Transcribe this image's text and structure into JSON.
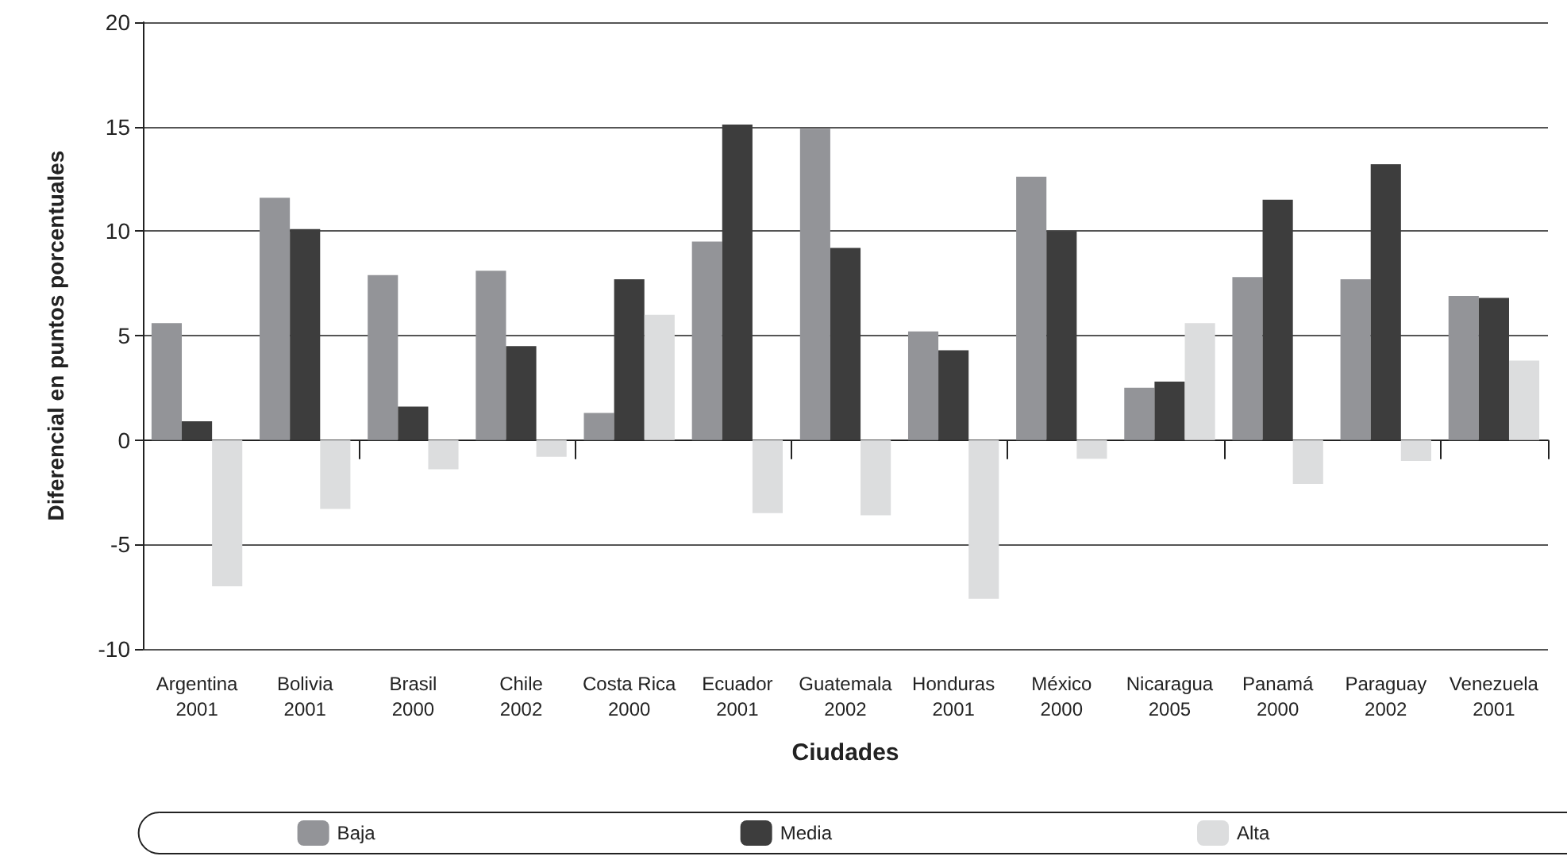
{
  "chart_data": {
    "type": "bar",
    "xlabel": "Ciudades",
    "ylabel": "Diferencial en puntos porcentuales",
    "categories": [
      "Argentina\n2001",
      "Bolivia\n2001",
      "Brasil\n2000",
      "Chile\n2002",
      "Costa Rica\n2000",
      "Ecuador\n2001",
      "Guatemala\n2002",
      "Honduras\n2001",
      "México\n2000",
      "Nicaragua\n2005",
      "Panamá\n2000",
      "Paraguay\n2002",
      "Venezuela\n2001"
    ],
    "series": [
      {
        "name": "Baja",
        "color": "#939498",
        "values": [
          5.6,
          11.6,
          7.9,
          8.1,
          1.3,
          9.5,
          14.9,
          5.2,
          12.6,
          2.5,
          7.8,
          7.7,
          6.9
        ]
      },
      {
        "name": "Media",
        "color": "#3d3d3d",
        "values": [
          0.9,
          10.1,
          1.6,
          4.5,
          7.7,
          15.1,
          9.2,
          4.3,
          10.0,
          2.8,
          11.5,
          13.2,
          6.8
        ]
      },
      {
        "name": "Alta",
        "color": "#dcddde",
        "values": [
          -7.0,
          -3.3,
          -1.4,
          -0.8,
          6.0,
          -3.5,
          -3.6,
          -7.6,
          -0.9,
          5.6,
          -2.1,
          -1.0,
          3.8
        ]
      }
    ],
    "ylim": [
      -10,
      20
    ],
    "yticks": [
      -10,
      -5,
      0,
      5,
      10,
      15,
      20
    ],
    "grid": "y",
    "legend": "bottom"
  }
}
